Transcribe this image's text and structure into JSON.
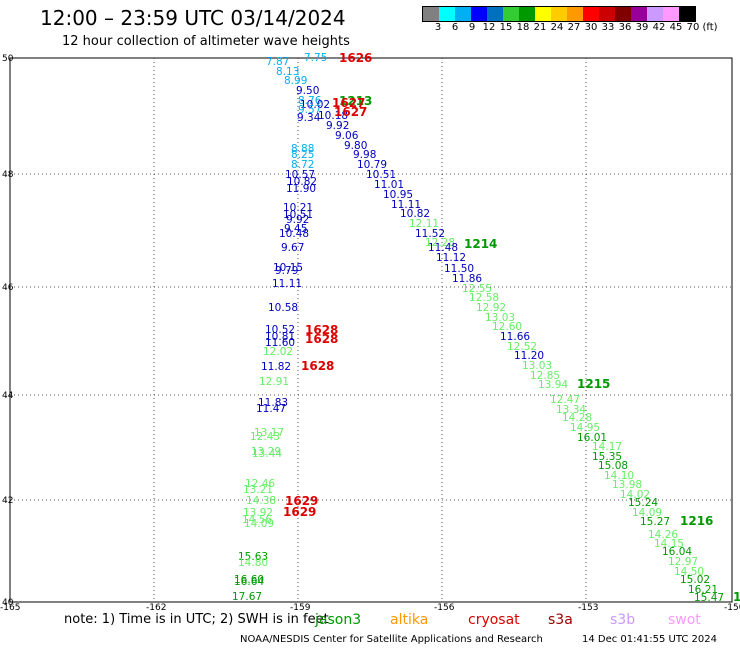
{
  "header": {
    "title": "12:00 – 23:59 UTC 03/14/2024",
    "subtitle": "12 hour collection of altimeter wave heights"
  },
  "legend": {
    "colors": [
      "#808080",
      "#00ffff",
      "#00b0f0",
      "#0000ff",
      "#0070c0",
      "#33cc33",
      "#009900",
      "#ffff00",
      "#ffcc00",
      "#ff9900",
      "#ff0000",
      "#cc0000",
      "#800000",
      "#990099",
      "#cc99ff",
      "#ff99ff",
      "#000000"
    ],
    "labels": [
      "3",
      "6",
      "9",
      "12",
      "15",
      "18",
      "21",
      "24",
      "27",
      "30",
      "33",
      "36",
      "39",
      "42",
      "45",
      "70",
      "(ft)"
    ]
  },
  "map": {
    "lon_ticks": [
      "-165",
      "-162",
      "-159",
      "-156",
      "-153",
      "-150"
    ],
    "lat_ticks": [
      "50",
      "48",
      "46",
      "44",
      "42",
      "40"
    ],
    "wave_heights": [
      {
        "v": "7.75",
        "c": "#00b0f0"
      },
      {
        "v": "7.87",
        "c": "#00b0f0"
      },
      {
        "v": "8.13",
        "c": "#00b0f0"
      },
      {
        "v": "8.99",
        "c": "#00b0f0"
      },
      {
        "v": "9.50",
        "c": "#0000c0"
      },
      {
        "v": "8.76",
        "c": "#00b0f0"
      },
      {
        "v": "10.02",
        "c": "#0000c0"
      },
      {
        "v": "9.57",
        "c": "#00b0f0"
      },
      {
        "v": "10.18",
        "c": "#0000c0"
      },
      {
        "v": "9.34",
        "c": "#0000c0"
      },
      {
        "v": "9.92",
        "c": "#0000c0"
      },
      {
        "v": "9.06",
        "c": "#0000c0"
      },
      {
        "v": "9.80",
        "c": "#0000c0"
      },
      {
        "v": "9.98",
        "c": "#0000c0"
      },
      {
        "v": "10.79",
        "c": "#0000c0"
      },
      {
        "v": "10.51",
        "c": "#0000c0"
      },
      {
        "v": "11.01",
        "c": "#0000c0"
      },
      {
        "v": "10.95",
        "c": "#0000c0"
      },
      {
        "v": "11.11",
        "c": "#0000c0"
      },
      {
        "v": "10.82",
        "c": "#0000c0"
      },
      {
        "v": "12.11",
        "c": "#66ee66"
      },
      {
        "v": "11.52",
        "c": "#0000c0"
      },
      {
        "v": "12.28",
        "c": "#66ee66"
      },
      {
        "v": "11.48",
        "c": "#0000c0"
      },
      {
        "v": "11.12",
        "c": "#0000c0"
      },
      {
        "v": "11.50",
        "c": "#0000c0"
      },
      {
        "v": "11.86",
        "c": "#0000c0"
      },
      {
        "v": "12.55",
        "c": "#66ee66"
      },
      {
        "v": "12.58",
        "c": "#66ee66"
      },
      {
        "v": "12.92",
        "c": "#66ee66"
      },
      {
        "v": "13.03",
        "c": "#66ee66"
      },
      {
        "v": "12.60",
        "c": "#66ee66"
      },
      {
        "v": "11.66",
        "c": "#0000c0"
      },
      {
        "v": "12.52",
        "c": "#66ee66"
      },
      {
        "v": "11.20",
        "c": "#0000c0"
      },
      {
        "v": "13.03",
        "c": "#66ee66"
      },
      {
        "v": "12.85",
        "c": "#66ee66"
      },
      {
        "v": "13.94",
        "c": "#66ee66"
      },
      {
        "v": "12.47",
        "c": "#66ee66"
      },
      {
        "v": "13.34",
        "c": "#66ee66"
      },
      {
        "v": "14.28",
        "c": "#66ee66"
      },
      {
        "v": "14.95",
        "c": "#66ee66"
      },
      {
        "v": "16.01",
        "c": "#009900"
      },
      {
        "v": "14.17",
        "c": "#66ee66"
      },
      {
        "v": "15.35",
        "c": "#009900"
      },
      {
        "v": "15.08",
        "c": "#009900"
      },
      {
        "v": "14.10",
        "c": "#66ee66"
      },
      {
        "v": "13.98",
        "c": "#66ee66"
      },
      {
        "v": "14.02",
        "c": "#66ee66"
      },
      {
        "v": "15.24",
        "c": "#009900"
      },
      {
        "v": "14.09",
        "c": "#66ee66"
      },
      {
        "v": "15.27",
        "c": "#009900"
      },
      {
        "v": "14.26",
        "c": "#66ee66"
      },
      {
        "v": "14.15",
        "c": "#66ee66"
      },
      {
        "v": "16.04",
        "c": "#009900"
      },
      {
        "v": "12.97",
        "c": "#66ee66"
      },
      {
        "v": "14.50",
        "c": "#66ee66"
      },
      {
        "v": "15.02",
        "c": "#009900"
      },
      {
        "v": "16.21",
        "c": "#009900"
      },
      {
        "v": "15.47",
        "c": "#009900"
      },
      {
        "v": "8.88",
        "c": "#00b0f0"
      },
      {
        "v": "8.25",
        "c": "#00b0f0"
      },
      {
        "v": "8.72",
        "c": "#00b0f0"
      },
      {
        "v": "10.57",
        "c": "#0000c0"
      },
      {
        "v": "10.82",
        "c": "#0000c0"
      },
      {
        "v": "11.90",
        "c": "#0000c0"
      },
      {
        "v": "10.21",
        "c": "#0000c0"
      },
      {
        "v": "10.51",
        "c": "#0000c0"
      },
      {
        "v": "9.92",
        "c": "#0000c0"
      },
      {
        "v": "9.45",
        "c": "#0000c0"
      },
      {
        "v": "10.48",
        "c": "#0000c0"
      },
      {
        "v": "9.67",
        "c": "#0000c0"
      },
      {
        "v": "10.15",
        "c": "#0000c0"
      },
      {
        "v": "9.79",
        "c": "#0000c0"
      },
      {
        "v": "11.11",
        "c": "#0000c0"
      },
      {
        "v": "10.58",
        "c": "#0000c0"
      },
      {
        "v": "10.52",
        "c": "#0000c0"
      },
      {
        "v": "10.81",
        "c": "#0000c0"
      },
      {
        "v": "11.60",
        "c": "#0000c0"
      },
      {
        "v": "12.02",
        "c": "#66ee66"
      },
      {
        "v": "11.82",
        "c": "#0000c0"
      },
      {
        "v": "12.91",
        "c": "#66ee66"
      },
      {
        "v": "11.83",
        "c": "#0000c0"
      },
      {
        "v": "11.47",
        "c": "#0000c0"
      },
      {
        "v": "13.17",
        "c": "#66ee66"
      },
      {
        "v": "12.43",
        "c": "#66ee66"
      },
      {
        "v": "13.29",
        "c": "#66ee66"
      },
      {
        "v": "13.44",
        "c": "#66ee66"
      },
      {
        "v": "12.46",
        "c": "#66ee66"
      },
      {
        "v": "13.21",
        "c": "#66ee66"
      },
      {
        "v": "14.38",
        "c": "#66ee66"
      },
      {
        "v": "13.92",
        "c": "#66ee66"
      },
      {
        "v": "14.56",
        "c": "#66ee66"
      },
      {
        "v": "14.09",
        "c": "#66ee66"
      },
      {
        "v": "15.63",
        "c": "#009900"
      },
      {
        "v": "14.80",
        "c": "#66ee66"
      },
      {
        "v": "16.60",
        "c": "#009900"
      },
      {
        "v": "16.64",
        "c": "#009900"
      },
      {
        "v": "17.67",
        "c": "#009900"
      }
    ],
    "pass_labels": [
      {
        "v": "1626",
        "c": "#dd0000"
      },
      {
        "v": "1213",
        "c": "#009900"
      },
      {
        "v": "1627",
        "c": "#dd0000"
      },
      {
        "v": "1627",
        "c": "#dd0000"
      },
      {
        "v": "1214",
        "c": "#009900"
      },
      {
        "v": "1628",
        "c": "#dd0000"
      },
      {
        "v": "1628",
        "c": "#dd0000"
      },
      {
        "v": "1628",
        "c": "#dd0000"
      },
      {
        "v": "1215",
        "c": "#009900"
      },
      {
        "v": "1629",
        "c": "#dd0000"
      },
      {
        "v": "1629",
        "c": "#dd0000"
      },
      {
        "v": "1216",
        "c": "#009900"
      },
      {
        "v": "1",
        "c": "#009900"
      }
    ]
  },
  "footer": {
    "note": "note:  1) Time is in UTC;  2) SWH is in feet",
    "satellites": [
      {
        "name": "jason3",
        "color": "#009900"
      },
      {
        "name": "altika",
        "color": "#ff9900"
      },
      {
        "name": "cryosat",
        "color": "#dd0000"
      },
      {
        "name": "s3a",
        "color": "#990000"
      },
      {
        "name": "s3b",
        "color": "#cc99ff"
      },
      {
        "name": "swot",
        "color": "#ff99ff"
      }
    ],
    "credit": "NOAA/NESDIS Center for Satellite Applications and Research",
    "generated": "14 Dec 01:41:55 UTC 2024"
  }
}
